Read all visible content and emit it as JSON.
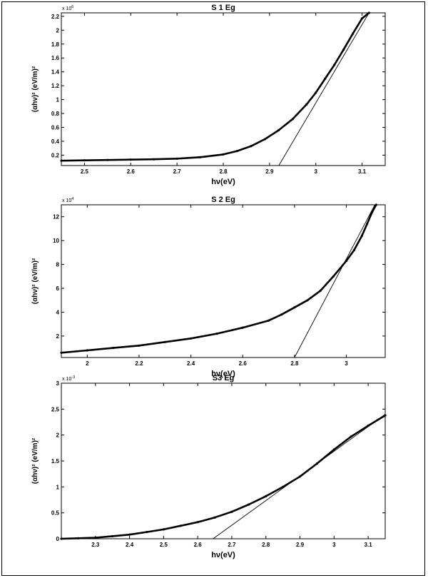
{
  "chart_data": [
    {
      "type": "line",
      "title": "S 1 Eg",
      "xlabel": "hν(eV)",
      "ylabel": "(αhν)² (eV/m)²",
      "y_exponent": "x 10",
      "y_exponent_power": "6",
      "xlim": [
        2.45,
        3.15
      ],
      "ylim": [
        0.05,
        2.25
      ],
      "x_ticks": [
        "2.5",
        "2.6",
        "2.7",
        "2.8",
        "2.9",
        "3",
        "3.1"
      ],
      "y_ticks": [
        "0.2",
        "0.4",
        "0.6",
        "0.8",
        "1",
        "1.2",
        "1.4",
        "1.6",
        "1.8",
        "2",
        "2.2"
      ],
      "series": [
        {
          "x": [
            2.45,
            2.5,
            2.55,
            2.6,
            2.65,
            2.7,
            2.75,
            2.8,
            2.83,
            2.86,
            2.89,
            2.92,
            2.95,
            2.98,
            3.0,
            3.02,
            3.04,
            3.06,
            3.08,
            3.1,
            3.115
          ],
          "values": [
            0.12,
            0.125,
            0.13,
            0.135,
            0.14,
            0.15,
            0.17,
            0.21,
            0.26,
            0.33,
            0.43,
            0.56,
            0.72,
            0.93,
            1.1,
            1.3,
            1.5,
            1.72,
            1.95,
            2.17,
            2.25
          ]
        }
      ],
      "fit_line": {
        "x": [
          2.92,
          3.115
        ],
        "values": [
          0.05,
          2.25
        ]
      }
    },
    {
      "type": "line",
      "title": "S 2 Eg",
      "xlabel": "hν(eV)",
      "ylabel": "(αhν)² (eV/m)²",
      "y_exponent": "x 10",
      "y_exponent_power": "4",
      "xlim": [
        1.9,
        3.15
      ],
      "ylim": [
        0.2,
        13
      ],
      "x_ticks": [
        "2",
        "2.2",
        "2.4",
        "2.6",
        "2.8",
        "3"
      ],
      "y_ticks": [
        "2",
        "4",
        "6",
        "8",
        "10",
        "12"
      ],
      "series": [
        {
          "x": [
            1.9,
            2.0,
            2.1,
            2.2,
            2.3,
            2.4,
            2.5,
            2.6,
            2.7,
            2.75,
            2.8,
            2.85,
            2.9,
            2.95,
            3.0,
            3.03,
            3.06,
            3.08,
            3.1,
            3.115
          ],
          "values": [
            0.6,
            0.8,
            1.0,
            1.2,
            1.5,
            1.8,
            2.2,
            2.7,
            3.3,
            3.8,
            4.4,
            5.0,
            5.8,
            7.0,
            8.3,
            9.2,
            10.4,
            11.4,
            12.4,
            13.0
          ]
        }
      ],
      "fit_line": {
        "x": [
          2.8,
          3.11
        ],
        "values": [
          0.2,
          13.0
        ]
      }
    },
    {
      "type": "line",
      "title": "S3 Eg",
      "xlabel": "hν(eV)",
      "ylabel": "(αhν)² (eV/m)²",
      "y_exponent": "x 10",
      "y_exponent_power": "-3",
      "xlim": [
        2.2,
        3.15
      ],
      "ylim": [
        0,
        3
      ],
      "x_ticks": [
        "2.3",
        "2.4",
        "2.5",
        "2.6",
        "2.7",
        "2.8",
        "2.9",
        "3",
        "3.1"
      ],
      "y_ticks": [
        "0",
        "0.5",
        "1",
        "1.5",
        "2",
        "2.5",
        "3"
      ],
      "series": [
        {
          "x": [
            2.2,
            2.25,
            2.3,
            2.35,
            2.4,
            2.45,
            2.5,
            2.55,
            2.6,
            2.65,
            2.7,
            2.75,
            2.8,
            2.85,
            2.9,
            2.95,
            3.0,
            3.05,
            3.1,
            3.15
          ],
          "values": [
            0.0,
            0.01,
            0.02,
            0.05,
            0.08,
            0.13,
            0.18,
            0.25,
            0.32,
            0.41,
            0.52,
            0.66,
            0.82,
            1.0,
            1.2,
            1.45,
            1.72,
            1.97,
            2.18,
            2.38
          ]
        }
      ],
      "fit_line": {
        "x": [
          2.645,
          3.15
        ],
        "values": [
          0.0,
          2.4
        ]
      }
    }
  ]
}
